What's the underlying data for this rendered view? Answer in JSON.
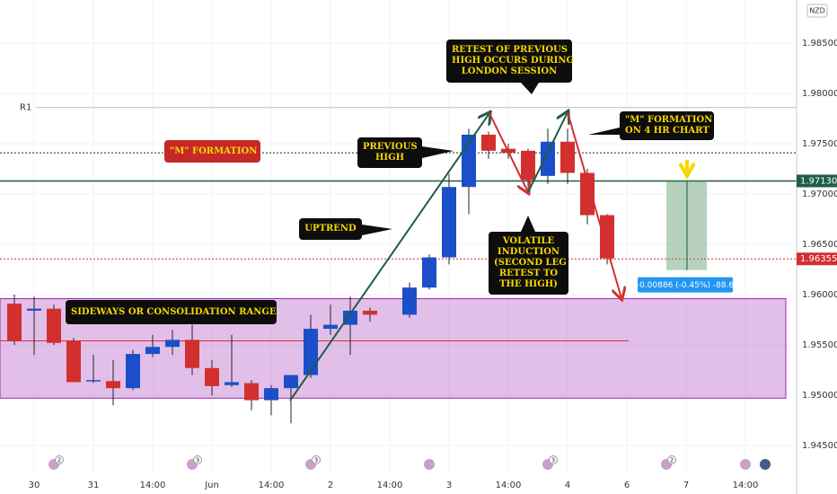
{
  "chart_data": {
    "type": "candlestick",
    "currency": "NZD",
    "x": [
      0,
      1,
      2,
      3,
      4,
      5,
      6,
      7,
      8,
      9,
      10,
      11,
      12,
      13,
      14,
      15,
      16,
      17,
      18,
      20,
      21,
      22,
      23,
      24,
      25,
      26,
      27,
      28,
      29,
      30
    ],
    "open": [
      1.9591,
      1.9584,
      1.9586,
      1.9554,
      1.9514,
      1.9514,
      1.9507,
      1.9541,
      1.9548,
      1.9555,
      1.9527,
      1.951,
      1.9512,
      1.9495,
      1.9507,
      1.952,
      1.9566,
      1.957,
      1.9584,
      1.958,
      1.9607,
      1.9637,
      1.9707,
      1.9759,
      1.9745,
      1.9743,
      1.9718,
      1.9752,
      1.9721,
      1.9679
    ],
    "high": [
      1.96,
      1.9598,
      1.959,
      1.9557,
      1.954,
      1.9535,
      1.9545,
      1.956,
      1.9565,
      1.957,
      1.9535,
      1.956,
      1.9515,
      1.951,
      1.952,
      1.958,
      1.959,
      1.9598,
      1.9587,
      1.9612,
      1.964,
      1.972,
      1.9765,
      1.9762,
      1.975,
      1.9745,
      1.9765,
      1.9765,
      1.9725,
      1.968
    ],
    "low": [
      1.955,
      1.954,
      1.955,
      1.9513,
      1.9512,
      1.949,
      1.9505,
      1.9538,
      1.954,
      1.952,
      1.95,
      1.9508,
      1.9485,
      1.948,
      1.9472,
      1.9517,
      1.956,
      1.954,
      1.9573,
      1.9577,
      1.9605,
      1.963,
      1.968,
      1.9735,
      1.9735,
      1.9705,
      1.971,
      1.971,
      1.967,
      1.963
    ],
    "close": [
      1.9554,
      1.9586,
      1.9552,
      1.9513,
      1.9515,
      1.9507,
      1.9541,
      1.9548,
      1.9555,
      1.9527,
      1.9509,
      1.9513,
      1.9495,
      1.9507,
      1.952,
      1.9566,
      1.957,
      1.9584,
      1.958,
      1.9607,
      1.9637,
      1.9707,
      1.9759,
      1.9743,
      1.9741,
      1.9714,
      1.9752,
      1.9721,
      1.9679,
      1.9636
    ],
    "up_color": "#1a4fc9",
    "down_color": "#d32f2f",
    "xlim": [
      -0.7273,
      39.5909
    ],
    "ylim": [
      1.94214,
      1.98929
    ],
    "xticks": [
      {
        "value": 1,
        "label": "30"
      },
      {
        "value": 4,
        "label": "31"
      },
      {
        "value": 7,
        "label": "14:00"
      },
      {
        "value": 10,
        "label": "Jun"
      },
      {
        "value": 13,
        "label": "14:00"
      },
      {
        "value": 16,
        "label": "2"
      },
      {
        "value": 19,
        "label": "14:00"
      },
      {
        "value": 22,
        "label": "3"
      },
      {
        "value": 25,
        "label": "14:00"
      },
      {
        "value": 28,
        "label": "4"
      },
      {
        "value": 31,
        "label": "6"
      },
      {
        "value": 34,
        "label": "7"
      },
      {
        "value": 37,
        "label": "14:00"
      }
    ],
    "yticks": [
      {
        "value": 1.985,
        "label": "1.98500"
      },
      {
        "value": 1.98,
        "label": "1.98000"
      },
      {
        "value": 1.975,
        "label": "1.97500"
      },
      {
        "value": 1.97,
        "label": "1.97000"
      },
      {
        "value": 1.965,
        "label": "1.96500"
      },
      {
        "value": 1.96,
        "label": "1.96000"
      },
      {
        "value": 1.955,
        "label": "1.95500"
      },
      {
        "value": 1.95,
        "label": "1.95000"
      },
      {
        "value": 1.945,
        "label": "1.94500"
      }
    ],
    "grid": true,
    "r1": {
      "name": "R1",
      "value": 1.9786
    },
    "levels": [
      {
        "value": 1.9741,
        "color": "#222222",
        "style": "dotted"
      },
      {
        "value": 1.9713,
        "label": "1.97130",
        "color": "#1e5e45",
        "style": "solid"
      },
      {
        "value": 1.96355,
        "label": "1.96355",
        "color": "#d32f2f",
        "style": "dotted"
      }
    ],
    "zone": {
      "top": 1.9596,
      "bottom": 1.9497,
      "mid": 1.9554
    },
    "measure": {
      "from": 1.9713,
      "change": -0.00886,
      "label": "-0.00886 (-0.45%) -88.6"
    },
    "events": [
      {
        "x": 2,
        "count": "2"
      },
      {
        "x": 9,
        "count": "3"
      },
      {
        "x": 15,
        "count": "3"
      },
      {
        "x": 27,
        "count": "3"
      },
      {
        "x": 33,
        "count": "2"
      }
    ],
    "annotations": [
      [
        "RETEST OF PREVIOUS",
        "HIGH OCCURS DURING",
        "LONDON SESSION"
      ],
      [
        "\"M\" FORMATION",
        "ON 4 HR CHART"
      ],
      [
        "\"M\" FORMATION"
      ],
      [
        "PREVIOUS",
        "HIGH"
      ],
      [
        "UPTREND"
      ],
      [
        "VOLATILE",
        "INDUCTION",
        "(SECOND LEG",
        "RETEST TO",
        "THE HIGH)"
      ],
      [
        "SIDEWAYS OR CONSOLIDATION RANGE"
      ]
    ]
  }
}
